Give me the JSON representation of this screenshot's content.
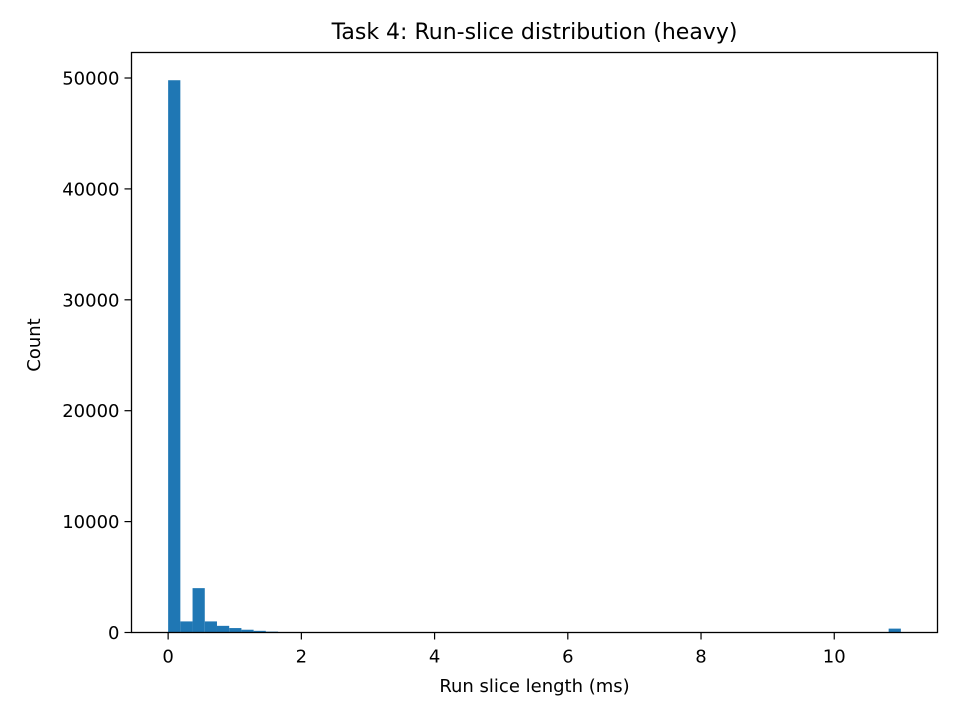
{
  "chart_data": {
    "type": "bar",
    "subtype": "histogram",
    "title": "Task 4: Run-slice distribution (heavy)",
    "xlabel": "Run slice length (ms)",
    "ylabel": "Count",
    "xlim": [
      -0.55,
      11.55
    ],
    "ylim": [
      0,
      52300
    ],
    "xticks": [
      0,
      2,
      4,
      6,
      8,
      10
    ],
    "yticks": [
      0,
      10000,
      20000,
      30000,
      40000,
      50000
    ],
    "grid": false,
    "legend": "none",
    "bar_color": "#1f77b4",
    "bin_width": 0.1833,
    "bins": [
      {
        "x0": 0.0,
        "count": 49800
      },
      {
        "x0": 0.1833,
        "count": 1000
      },
      {
        "x0": 0.3667,
        "count": 4000
      },
      {
        "x0": 0.55,
        "count": 1000
      },
      {
        "x0": 0.7333,
        "count": 600
      },
      {
        "x0": 0.9167,
        "count": 400
      },
      {
        "x0": 1.1,
        "count": 250
      },
      {
        "x0": 1.2833,
        "count": 150
      },
      {
        "x0": 1.4667,
        "count": 80
      },
      {
        "x0": 1.65,
        "count": 40
      },
      {
        "x0": 1.8333,
        "count": 20
      },
      {
        "x0": 2.0167,
        "count": 10
      },
      {
        "x0": 10.8167,
        "count": 350
      }
    ]
  }
}
